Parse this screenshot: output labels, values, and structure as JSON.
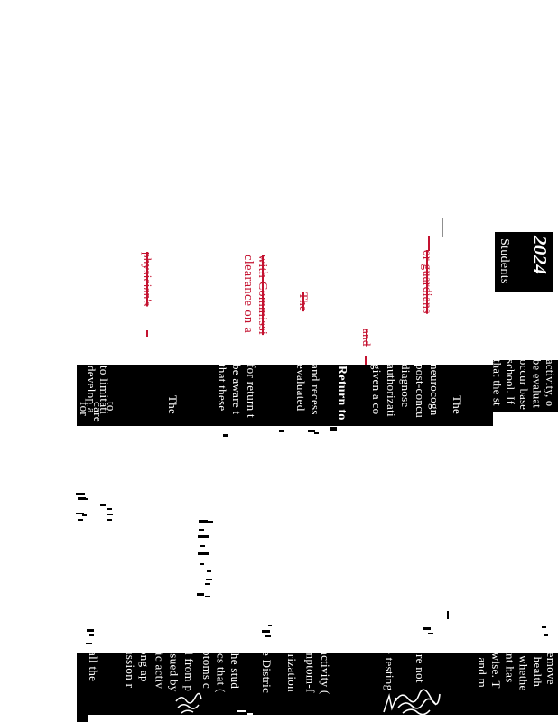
{
  "page": {
    "bg": "#ffffff",
    "ink": "#000000",
    "inverse_text": "#ffffff",
    "redline_color": "#c41230",
    "rule_line_color": "#c9c9c9"
  },
  "title_block": {
    "year": "2024",
    "label": "Students"
  },
  "band1": {
    "para_intro": [
      "activity, o",
      "be evaluat",
      "occur base",
      "school. If",
      "that the st"
    ],
    "the_1": "The",
    "para_neuro": [
      "neurocogn",
      "post-concu",
      "diagnose",
      "authorizati",
      "given a co"
    ],
    "heading_return": "Return to",
    "para_recess": [
      "and recess",
      "evaluated"
    ],
    "para_aware": [
      "for return t",
      "be aware t",
      "that these"
    ],
    "the_2": "The",
    "para_limit": [
      "to limitati",
      "develop a"
    ],
    "care": "to care for"
  },
  "band2": {
    "para_top": [
      "remove",
      "e health",
      "f whethe",
      "ent has ",
      "rwise. T",
      "n and m"
    ],
    "not": "re not ",
    "testing": "e testing",
    "para_activity": [
      "activity (",
      "mptom-f"
    ],
    "orization": "orization",
    "district": "e Distric",
    "para_student": [
      "the stud",
      "ics that (",
      "ptoms c"
    ],
    "para_issued": [
      "d from p",
      "ssued by",
      "tic activ",
      "ong ap",
      "ussion r"
    ],
    "all": " all the "
  },
  "redline": {
    "guardians": "or guardians",
    "with_comm": "with Commissi",
    "clearance": "clearance on a",
    "physician": "physician's",
    "the": "The",
    "and": "and"
  }
}
